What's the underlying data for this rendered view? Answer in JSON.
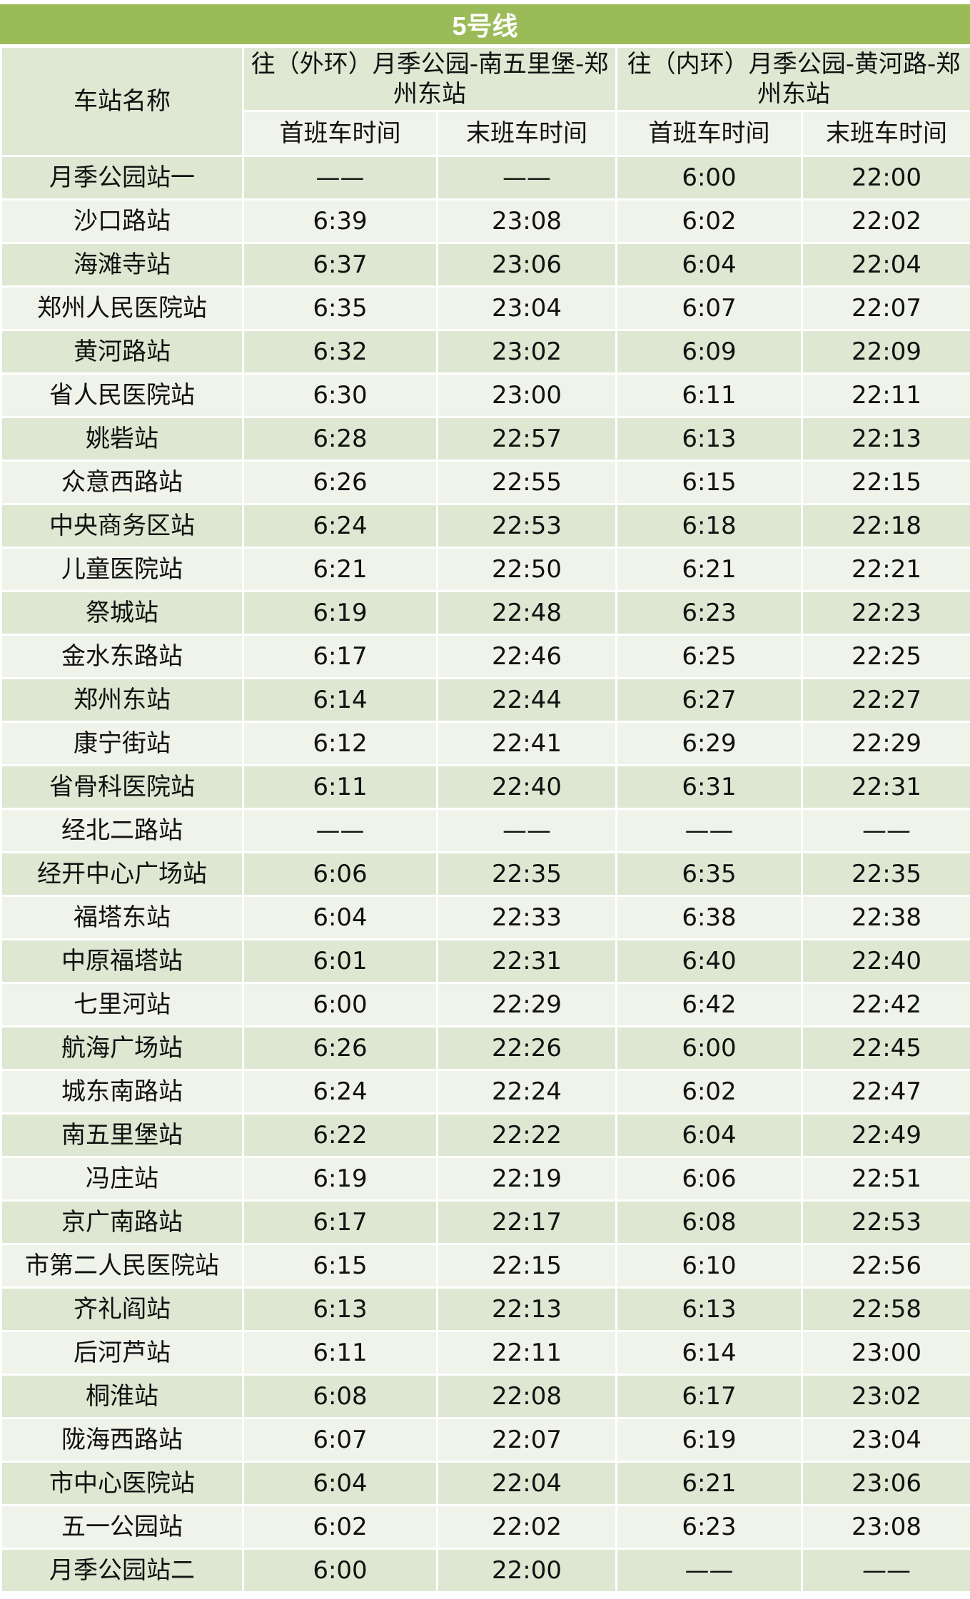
{
  "title": "5号线",
  "headers": {
    "station": "车站名称",
    "outer": "往（外环）月季公园-南五里堡-郑州东站",
    "inner": "往（内环）月季公园-黄河路-郑州东站",
    "first": "首班车时间",
    "last": "末班车时间"
  },
  "colors": {
    "title_bg": "#9bbb59",
    "row_dark": "#dee7d1",
    "row_light": "#eff3ea"
  },
  "rows": [
    [
      "月季公园站一",
      "——",
      "——",
      "6:00",
      "22:00"
    ],
    [
      "沙口路站",
      "6:39",
      "23:08",
      "6:02",
      "22:02"
    ],
    [
      "海滩寺站",
      "6:37",
      "23:06",
      "6:04",
      "22:04"
    ],
    [
      "郑州人民医院站",
      "6:35",
      "23:04",
      "6:07",
      "22:07"
    ],
    [
      "黄河路站",
      "6:32",
      "23:02",
      "6:09",
      "22:09"
    ],
    [
      "省人民医院站",
      "6:30",
      "23:00",
      "6:11",
      "22:11"
    ],
    [
      "姚砦站",
      "6:28",
      "22:57",
      "6:13",
      "22:13"
    ],
    [
      "众意西路站",
      "6:26",
      "22:55",
      "6:15",
      "22:15"
    ],
    [
      "中央商务区站",
      "6:24",
      "22:53",
      "6:18",
      "22:18"
    ],
    [
      "儿童医院站",
      "6:21",
      "22:50",
      "6:21",
      "22:21"
    ],
    [
      "祭城站",
      "6:19",
      "22:48",
      "6:23",
      "22:23"
    ],
    [
      "金水东路站",
      "6:17",
      "22:46",
      "6:25",
      "22:25"
    ],
    [
      "郑州东站",
      "6:14",
      "22:44",
      "6:27",
      "22:27"
    ],
    [
      "康宁街站",
      "6:12",
      "22:41",
      "6:29",
      "22:29"
    ],
    [
      "省骨科医院站",
      "6:11",
      "22:40",
      "6:31",
      "22:31"
    ],
    [
      "经北二路站",
      "——",
      "——",
      "——",
      "——"
    ],
    [
      "经开中心广场站",
      "6:06",
      "22:35",
      "6:35",
      "22:35"
    ],
    [
      "福塔东站",
      "6:04",
      "22:33",
      "6:38",
      "22:38"
    ],
    [
      "中原福塔站",
      "6:01",
      "22:31",
      "6:40",
      "22:40"
    ],
    [
      "七里河站",
      "6:00",
      "22:29",
      "6:42",
      "22:42"
    ],
    [
      "航海广场站",
      "6:26",
      "22:26",
      "6:00",
      "22:45"
    ],
    [
      "城东南路站",
      "6:24",
      "22:24",
      "6:02",
      "22:47"
    ],
    [
      "南五里堡站",
      "6:22",
      "22:22",
      "6:04",
      "22:49"
    ],
    [
      "冯庄站",
      "6:19",
      "22:19",
      "6:06",
      "22:51"
    ],
    [
      "京广南路站",
      "6:17",
      "22:17",
      "6:08",
      "22:53"
    ],
    [
      "市第二人民医院站",
      "6:15",
      "22:15",
      "6:10",
      "22:56"
    ],
    [
      "齐礼阎站",
      "6:13",
      "22:13",
      "6:13",
      "22:58"
    ],
    [
      "后河芦站",
      "6:11",
      "22:11",
      "6:14",
      "23:00"
    ],
    [
      "桐淮站",
      "6:08",
      "22:08",
      "6:17",
      "23:02"
    ],
    [
      "陇海西路站",
      "6:07",
      "22:07",
      "6:19",
      "23:04"
    ],
    [
      "市中心医院站",
      "6:04",
      "22:04",
      "6:21",
      "23:06"
    ],
    [
      "五一公园站",
      "6:02",
      "22:02",
      "6:23",
      "23:08"
    ],
    [
      "月季公园站二",
      "6:00",
      "22:00",
      "——",
      "——"
    ]
  ]
}
